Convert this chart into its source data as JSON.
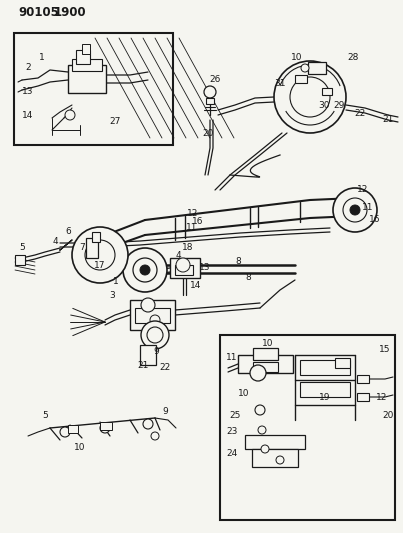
{
  "title": "90105 1900",
  "bg_color": "#f5f5f0",
  "line_color": "#1a1a1a",
  "text_color": "#1a1a1a",
  "fig_width": 4.03,
  "fig_height": 5.33,
  "dpi": 100
}
